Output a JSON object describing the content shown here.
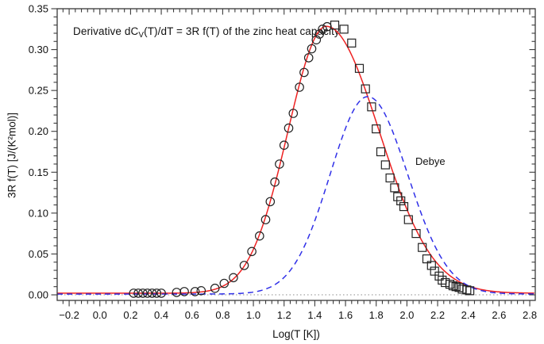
{
  "chart_data": {
    "type": "line+scatter",
    "title": {
      "prefix": "Derivative dC",
      "sub": "V",
      "suffix": "(T)/dT = 3R f(T) of the zinc heat capacity"
    },
    "xlabel": "Log(T [K])",
    "ylabel": "3R f(T) [J/(K²mol)]",
    "axes": {
      "x": {
        "min": -0.278,
        "max": 2.836,
        "minor_step": 0.04,
        "ticks": [
          {
            "v": -0.2,
            "label": "−0.2"
          },
          {
            "v": 0.0,
            "label": "0.0"
          },
          {
            "v": 0.2,
            "label": "0.2"
          },
          {
            "v": 0.4,
            "label": "0.4"
          },
          {
            "v": 0.6,
            "label": "0.6"
          },
          {
            "v": 0.8,
            "label": "0.8"
          },
          {
            "v": 1.0,
            "label": "1.0"
          },
          {
            "v": 1.2,
            "label": "1.2"
          },
          {
            "v": 1.4,
            "label": "1.4"
          },
          {
            "v": 1.6,
            "label": "1.6"
          },
          {
            "v": 1.8,
            "label": "1.8"
          },
          {
            "v": 2.0,
            "label": "2.0"
          },
          {
            "v": 2.2,
            "label": "2.2"
          },
          {
            "v": 2.4,
            "label": "2.4"
          },
          {
            "v": 2.6,
            "label": "2.6"
          },
          {
            "v": 2.8,
            "label": "2.8"
          }
        ]
      },
      "y": {
        "min": -0.0068,
        "max": 0.35,
        "minor_step": 0.01,
        "ticks": [
          {
            "v": 0.0,
            "label": "0.00"
          },
          {
            "v": 0.05,
            "label": "0.05"
          },
          {
            "v": 0.1,
            "label": "0.10"
          },
          {
            "v": 0.15,
            "label": "0.15"
          },
          {
            "v": 0.2,
            "label": "0.20"
          },
          {
            "v": 0.25,
            "label": "0.25"
          },
          {
            "v": 0.3,
            "label": "0.30"
          },
          {
            "v": 0.35,
            "label": "0.35"
          }
        ]
      }
    },
    "zero_line": {
      "y": 0,
      "color": "#999999"
    },
    "frame_color": "#3a3a3a",
    "series": [
      {
        "id": "zinc-fit",
        "type": "curve",
        "color": "#ee2222",
        "style": "solid",
        "model": {
          "kind": "asym_gauss",
          "amp": 0.3265,
          "center": 1.475,
          "sigma_left": 0.25,
          "sigma_right": 0.345,
          "baseline": 0.002
        }
      },
      {
        "id": "debye",
        "type": "curve",
        "color": "#3030e8",
        "style": "dashed",
        "model": {
          "kind": "asym_gauss",
          "amp": 0.2415,
          "center": 1.745,
          "sigma_left": 0.245,
          "sigma_right": 0.26,
          "baseline": 0.001
        },
        "label": {
          "text": "Debye",
          "x": 2.055,
          "y": 0.163
        }
      },
      {
        "id": "experimental-rising",
        "type": "scatter",
        "marker": "circle",
        "color": "#222222",
        "points": [
          [
            0.22,
            0.002
          ],
          [
            0.25,
            0.002
          ],
          [
            0.28,
            0.002
          ],
          [
            0.31,
            0.002
          ],
          [
            0.34,
            0.002
          ],
          [
            0.37,
            0.002
          ],
          [
            0.4,
            0.002
          ],
          [
            0.5,
            0.003
          ],
          [
            0.55,
            0.004
          ],
          [
            0.62,
            0.004
          ],
          [
            0.66,
            0.005
          ],
          [
            0.75,
            0.008
          ],
          [
            0.81,
            0.014
          ],
          [
            0.87,
            0.021
          ],
          [
            0.94,
            0.036
          ],
          [
            0.99,
            0.053
          ],
          [
            1.04,
            0.072
          ],
          [
            1.08,
            0.092
          ],
          [
            1.11,
            0.114
          ],
          [
            1.14,
            0.138
          ],
          [
            1.17,
            0.16
          ],
          [
            1.2,
            0.183
          ],
          [
            1.23,
            0.204
          ],
          [
            1.26,
            0.222
          ],
          [
            1.3,
            0.254
          ],
          [
            1.33,
            0.272
          ],
          [
            1.36,
            0.29
          ],
          [
            1.38,
            0.301
          ],
          [
            1.41,
            0.312
          ],
          [
            1.43,
            0.319
          ],
          [
            1.45,
            0.325
          ],
          [
            1.48,
            0.328
          ]
        ]
      },
      {
        "id": "experimental-falling",
        "type": "scatter",
        "marker": "square",
        "color": "#222222",
        "points": [
          [
            1.53,
            0.33
          ],
          [
            1.59,
            0.325
          ],
          [
            1.64,
            0.308
          ],
          [
            1.69,
            0.277
          ],
          [
            1.73,
            0.252
          ],
          [
            1.77,
            0.23
          ],
          [
            1.8,
            0.203
          ],
          [
            1.83,
            0.175
          ],
          [
            1.86,
            0.159
          ],
          [
            1.89,
            0.143
          ],
          [
            1.92,
            0.131
          ],
          [
            1.94,
            0.12
          ],
          [
            1.96,
            0.115
          ],
          [
            1.98,
            0.108
          ],
          [
            2.01,
            0.092
          ],
          [
            2.06,
            0.075
          ],
          [
            2.1,
            0.058
          ],
          [
            2.13,
            0.044
          ],
          [
            2.16,
            0.036
          ],
          [
            2.18,
            0.029
          ],
          [
            2.21,
            0.023
          ],
          [
            2.23,
            0.018
          ],
          [
            2.25,
            0.015
          ],
          [
            2.28,
            0.013
          ],
          [
            2.3,
            0.011
          ],
          [
            2.32,
            0.01
          ],
          [
            2.34,
            0.009
          ],
          [
            2.36,
            0.007
          ],
          [
            2.39,
            0.006
          ],
          [
            2.41,
            0.005
          ]
        ]
      }
    ]
  }
}
